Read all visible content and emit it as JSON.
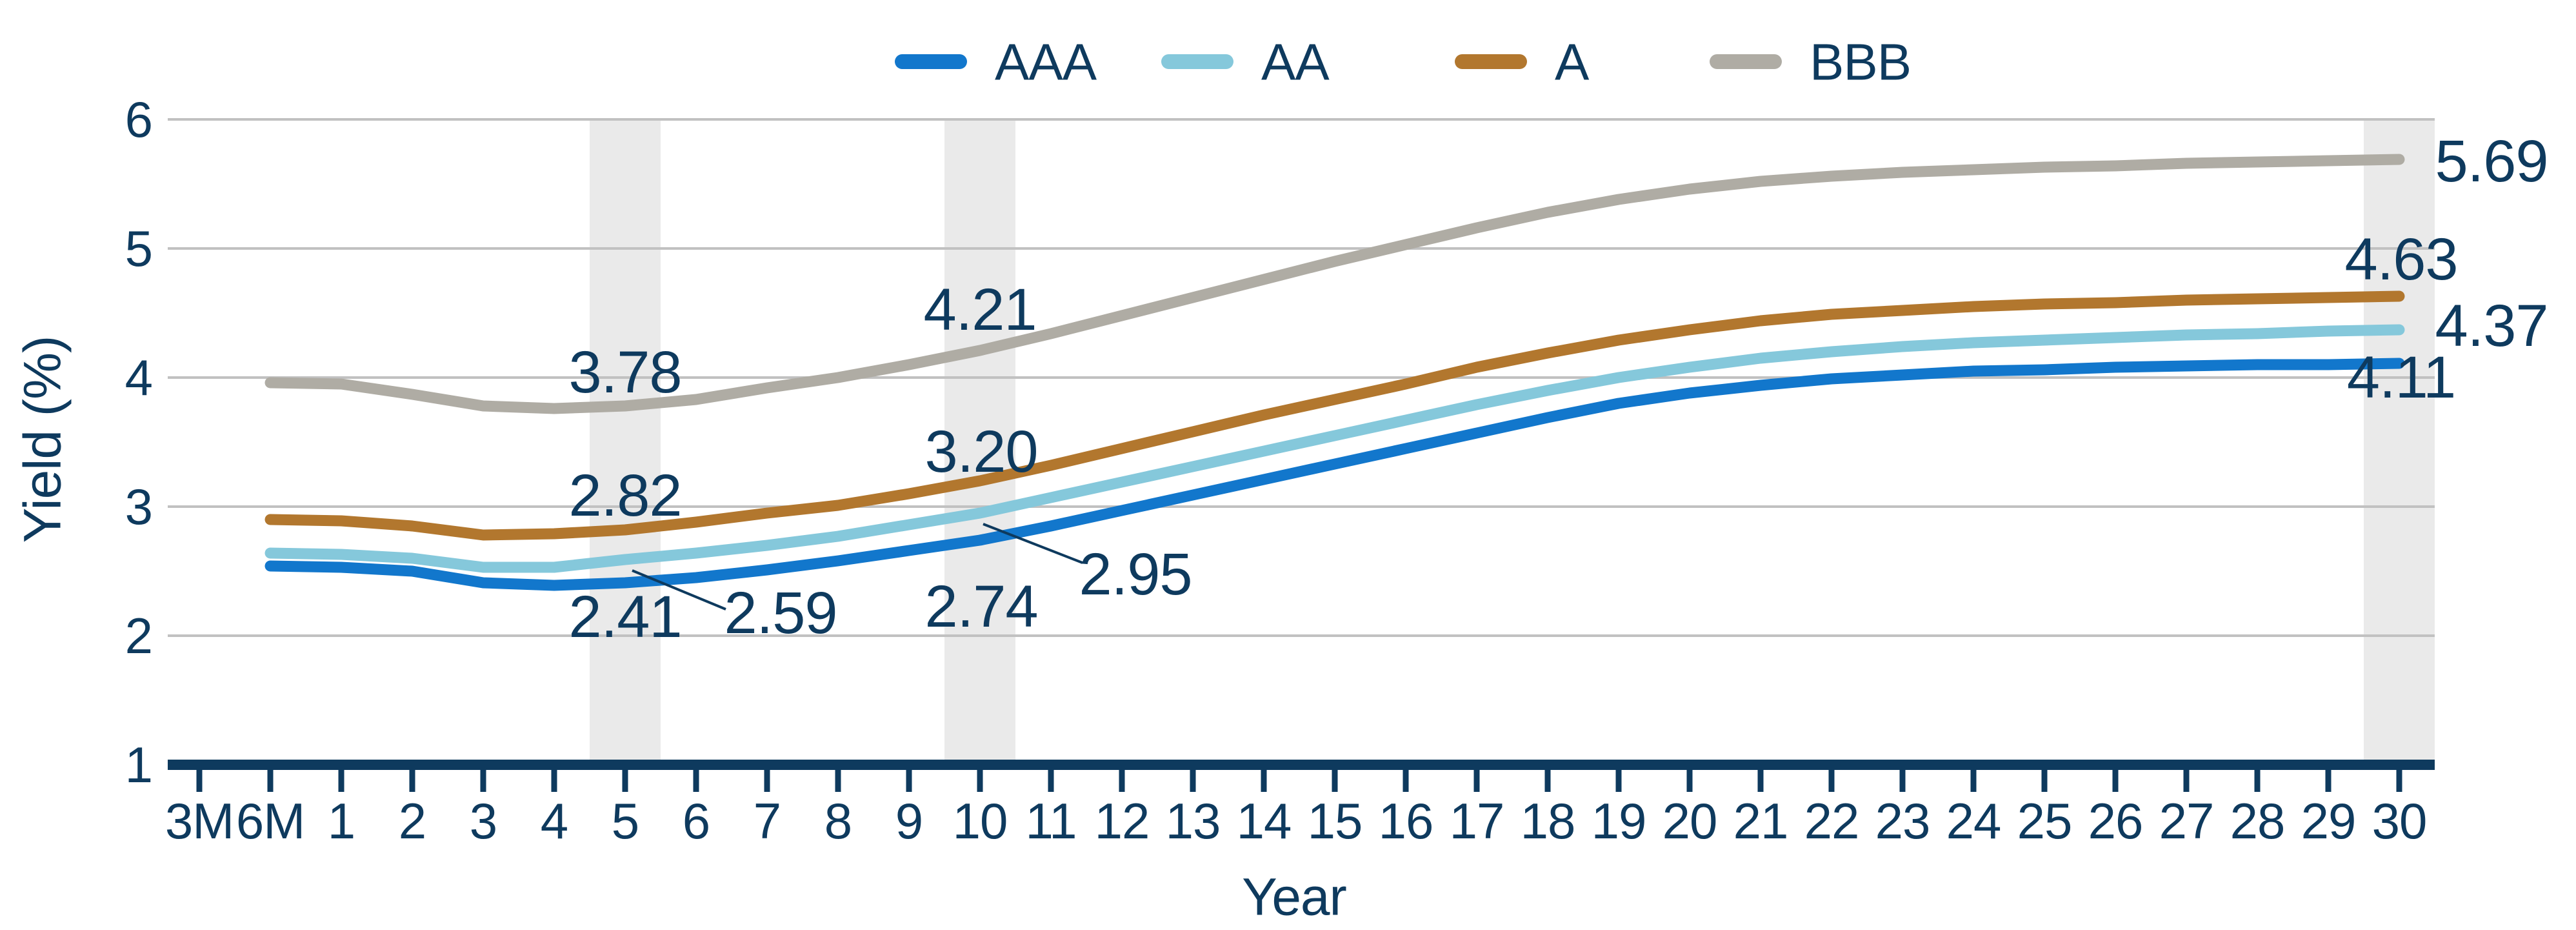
{
  "chart_data": {
    "type": "line",
    "title": "",
    "xlabel": "Year",
    "ylabel": "Yield (%)",
    "ylim": [
      1,
      6
    ],
    "ytick_labels": [
      "6",
      "5",
      "4",
      "3",
      "2",
      "1"
    ],
    "grid": "horizontal",
    "legend_position": "top",
    "highlighted_categories": [
      "5",
      "10",
      "30"
    ],
    "categories": [
      "3M",
      "6M",
      "1",
      "2",
      "3",
      "4",
      "5",
      "6",
      "7",
      "8",
      "9",
      "10",
      "11",
      "12",
      "13",
      "14",
      "15",
      "16",
      "17",
      "18",
      "19",
      "20",
      "21",
      "22",
      "23",
      "24",
      "25",
      "26",
      "27",
      "28",
      "29",
      "30"
    ],
    "data_start_category": "6M",
    "series": [
      {
        "name": "AAA",
        "color": "#1277CC",
        "values": [
          2.54,
          2.53,
          2.5,
          2.41,
          2.39,
          2.41,
          2.45,
          2.51,
          2.58,
          2.66,
          2.74,
          2.85,
          2.97,
          3.09,
          3.21,
          3.33,
          3.45,
          3.57,
          3.69,
          3.8,
          3.88,
          3.94,
          3.99,
          4.02,
          4.05,
          4.06,
          4.08,
          4.09,
          4.1,
          4.1,
          4.11
        ]
      },
      {
        "name": "AA",
        "color": "#85C8DB",
        "values": [
          2.64,
          2.63,
          2.6,
          2.53,
          2.53,
          2.59,
          2.64,
          2.7,
          2.77,
          2.86,
          2.95,
          3.07,
          3.19,
          3.31,
          3.43,
          3.55,
          3.67,
          3.79,
          3.9,
          4.0,
          4.08,
          4.15,
          4.2,
          4.24,
          4.27,
          4.29,
          4.31,
          4.33,
          4.34,
          4.36,
          4.37
        ]
      },
      {
        "name": "A",
        "color": "#B2772E",
        "values": [
          2.9,
          2.89,
          2.85,
          2.78,
          2.79,
          2.82,
          2.88,
          2.95,
          3.01,
          3.1,
          3.2,
          3.32,
          3.45,
          3.58,
          3.71,
          3.83,
          3.95,
          4.08,
          4.19,
          4.29,
          4.37,
          4.44,
          4.49,
          4.52,
          4.55,
          4.57,
          4.58,
          4.6,
          4.61,
          4.62,
          4.63
        ]
      },
      {
        "name": "BBB",
        "color": "#AFACA4",
        "values": [
          3.96,
          3.95,
          3.87,
          3.78,
          3.76,
          3.78,
          3.83,
          3.92,
          4.0,
          4.1,
          4.21,
          4.34,
          4.48,
          4.62,
          4.76,
          4.9,
          5.03,
          5.16,
          5.28,
          5.38,
          5.46,
          5.52,
          5.56,
          5.59,
          5.61,
          5.63,
          5.64,
          5.66,
          5.67,
          5.68,
          5.69
        ]
      }
    ],
    "annotations": [
      {
        "series": "BBB",
        "at": "5",
        "text": "3.78",
        "value": 3.78
      },
      {
        "series": "A",
        "at": "5",
        "text": "2.82",
        "value": 2.82
      },
      {
        "series": "AA",
        "at": "5",
        "text": "2.59",
        "value": 2.59
      },
      {
        "series": "AAA",
        "at": "5",
        "text": "2.41",
        "value": 2.41
      },
      {
        "series": "BBB",
        "at": "10",
        "text": "4.21",
        "value": 4.21
      },
      {
        "series": "A",
        "at": "10",
        "text": "3.20",
        "value": 3.2
      },
      {
        "series": "AA",
        "at": "10",
        "text": "2.95",
        "value": 2.95
      },
      {
        "series": "AAA",
        "at": "10",
        "text": "2.74",
        "value": 2.74
      },
      {
        "series": "BBB",
        "at": "30",
        "text": "5.69",
        "value": 5.69
      },
      {
        "series": "A",
        "at": "30",
        "text": "4.63",
        "value": 4.63
      },
      {
        "series": "AA",
        "at": "30",
        "text": "4.37",
        "value": 4.37
      },
      {
        "series": "AAA",
        "at": "30",
        "text": "4.11",
        "value": 4.11
      }
    ],
    "colors": {
      "text_navy": "#0E3A5E",
      "axis": "#0E3A5E",
      "gridline": "#C1C1C1",
      "highlight_band": "#EAEAEA",
      "background": "#FFFFFF"
    }
  }
}
